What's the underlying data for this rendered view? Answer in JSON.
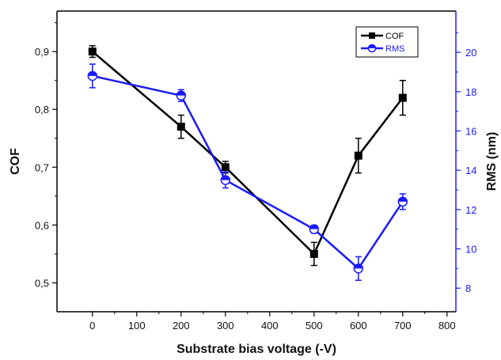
{
  "chart_data": {
    "type": "line",
    "xlabel": "Substrate bias voltage (-V)",
    "ylabel": "COF",
    "y2label": "RMS (nm)",
    "xlim": [
      -80,
      820
    ],
    "ylim": [
      0.45,
      0.97
    ],
    "y2lim": [
      6.8,
      22.1
    ],
    "xticks": [
      0,
      100,
      200,
      300,
      400,
      500,
      600,
      700,
      800
    ],
    "yticks": [
      0.5,
      0.6,
      0.7,
      0.8,
      0.9
    ],
    "ytick_labels": [
      "0,5",
      "0,6",
      "0,7",
      "0,8",
      "0,9"
    ],
    "y2ticks": [
      8,
      10,
      12,
      14,
      16,
      18,
      20
    ],
    "legend_position": "top-right",
    "grid": false,
    "series": [
      {
        "name": "COF",
        "axis": "left",
        "color": "#000000",
        "marker": "square",
        "x": [
          0,
          200,
          300,
          500,
          600,
          700
        ],
        "y": [
          0.9,
          0.77,
          0.7,
          0.55,
          0.72,
          0.82
        ],
        "error": [
          0.01,
          0.02,
          0.01,
          0.02,
          0.03,
          0.03
        ]
      },
      {
        "name": "RMS",
        "axis": "right",
        "color": "#1a1aff",
        "marker": "half-filled-circle",
        "x": [
          0,
          200,
          300,
          500,
          600,
          700
        ],
        "y": [
          18.8,
          17.8,
          13.5,
          11.0,
          9.0,
          12.4
        ],
        "error": [
          0.6,
          0.3,
          0.4,
          0.2,
          0.6,
          0.4
        ]
      }
    ]
  }
}
